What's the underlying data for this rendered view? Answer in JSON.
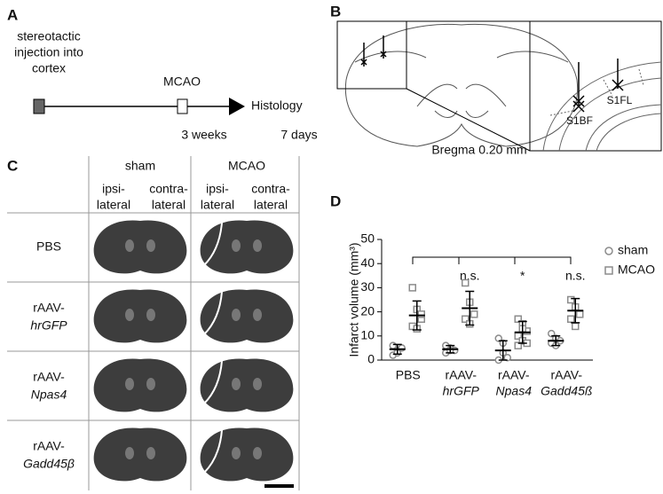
{
  "panels": {
    "a": {
      "label": "A",
      "injection": [
        "stereotactic",
        "injection into",
        "cortex"
      ],
      "mcao": "MCAO",
      "histology": "Histology",
      "interval1": "3 weeks",
      "interval2": "7 days"
    },
    "b": {
      "label": "B",
      "region1": "S1BF",
      "region2": "S1FL",
      "bregma": "Bregma 0.20 mm"
    },
    "c": {
      "label": "C",
      "columns": [
        "sham",
        "MCAO"
      ],
      "subcolumns": [
        [
          "ipsi-",
          "lateral"
        ],
        [
          "contra-",
          "lateral"
        ],
        [
          "ipsi-",
          "lateral"
        ],
        [
          "contra-",
          "lateral"
        ]
      ],
      "rows": [
        [
          "PBS"
        ],
        [
          "rAAV-",
          "hrGFP"
        ],
        [
          "rAAV-",
          "Npas4"
        ],
        [
          "rAAV-",
          "Gadd45β"
        ]
      ]
    },
    "d": {
      "label": "D"
    }
  },
  "chart_data": {
    "type": "dot",
    "ylabel": "Infarct volume (mm³)",
    "categories": [
      [
        "PBS"
      ],
      [
        "rAAV-",
        "hrGFP"
      ],
      [
        "rAAV-",
        "Npas4"
      ],
      [
        "rAAV-",
        "Gadd45ß"
      ]
    ],
    "ylim": [
      0,
      50
    ],
    "yticks": [
      0,
      10,
      20,
      30,
      40,
      50
    ],
    "series": [
      {
        "name": "sham",
        "color": "#8c8c8c",
        "marker": "circle",
        "values": [
          [
            2,
            4,
            5,
            6,
            3
          ],
          [
            3,
            5,
            4,
            6,
            4
          ],
          [
            9,
            7,
            1,
            0,
            3
          ],
          [
            11,
            9,
            8,
            7,
            6
          ]
        ],
        "mean": [
          4.5,
          4.5,
          4,
          8
        ],
        "sd": [
          2,
          1.5,
          4,
          2
        ]
      },
      {
        "name": "MCAO",
        "color": "#8c8c8c",
        "marker": "square",
        "values": [
          [
            30,
            21,
            17,
            14,
            13,
            19
          ],
          [
            32,
            24,
            19,
            17,
            15
          ],
          [
            17,
            15,
            12,
            10,
            8,
            7,
            6,
            13
          ],
          [
            25,
            22,
            19,
            17,
            14
          ]
        ],
        "mean": [
          18.5,
          21.5,
          11.5,
          20.5
        ],
        "sd": [
          6,
          7,
          4.5,
          5
        ]
      }
    ],
    "annotations": [
      null,
      "n.s.",
      "*",
      "n.s."
    ],
    "legend": "right"
  }
}
